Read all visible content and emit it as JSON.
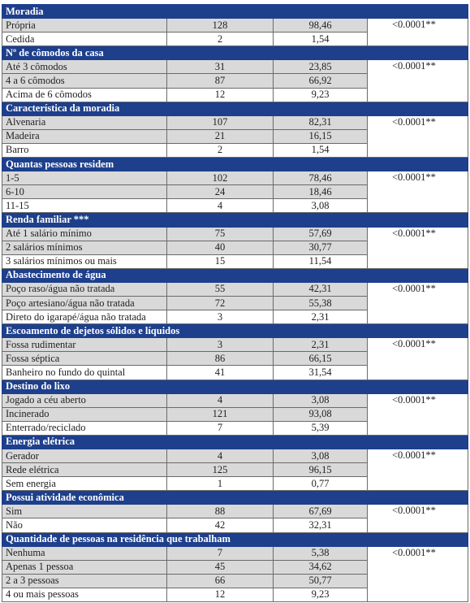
{
  "sections": [
    {
      "title": "Moradia",
      "p": "<0.0001**",
      "rows": [
        [
          "Própria",
          "128",
          "98,46"
        ],
        [
          "Cedida",
          "2",
          "1,54"
        ]
      ]
    },
    {
      "title": "Nº de cômodos da casa",
      "p": "<0.0001**",
      "rows": [
        [
          "Até 3 cômodos",
          "31",
          "23,85"
        ],
        [
          "4 a 6 cômodos",
          "87",
          "66,92"
        ],
        [
          "Acima de 6 cômodos",
          "12",
          "9,23"
        ]
      ]
    },
    {
      "title": "Característica da moradia",
      "p": "<0.0001**",
      "rows": [
        [
          "Alvenaria",
          "107",
          "82,31"
        ],
        [
          "Madeira",
          "21",
          "16,15"
        ],
        [
          "Barro",
          "2",
          "1,54"
        ]
      ]
    },
    {
      "title": "Quantas pessoas residem",
      "p": "<0.0001**",
      "rows": [
        [
          "1-5",
          "102",
          "78,46"
        ],
        [
          "6-10",
          "24",
          "18,46"
        ],
        [
          "11-15",
          "4",
          "3,08"
        ]
      ]
    },
    {
      "title": "Renda familiar ***",
      "p": "<0.0001**",
      "rows": [
        [
          "Até 1 salário mínimo",
          "75",
          "57,69"
        ],
        [
          "2 salários mínimos",
          "40",
          "30,77"
        ],
        [
          "3 salários mínimos ou mais",
          "15",
          "11,54"
        ]
      ]
    },
    {
      "title": "Abastecimento de água",
      "p": "<0.0001**",
      "rows": [
        [
          "Poço raso/água não tratada",
          "55",
          "42,31"
        ],
        [
          "Poço artesiano/água não tratada",
          "72",
          "55,38"
        ],
        [
          "Direto do igarapé/água não tratada",
          "3",
          "2,31"
        ]
      ]
    },
    {
      "title": "Escoamento de dejetos sólidos e líquidos",
      "p": "<0.0001**",
      "rows": [
        [
          "Fossa rudimentar",
          "3",
          "2,31"
        ],
        [
          "Fossa séptica",
          "86",
          "66,15"
        ],
        [
          "Banheiro no fundo do quintal",
          "41",
          "31,54"
        ]
      ]
    },
    {
      "title": "Destino do lixo",
      "p": "<0.0001**",
      "rows": [
        [
          "Jogado a céu aberto",
          "4",
          "3,08"
        ],
        [
          "Incinerado",
          "121",
          "93,08"
        ],
        [
          "Enterrado/reciclado",
          "7",
          "5,39"
        ]
      ]
    },
    {
      "title": "Energia elétrica",
      "p": "<0.0001**",
      "rows": [
        [
          "Gerador",
          "4",
          "3,08"
        ],
        [
          "Rede elétrica",
          "125",
          "96,15"
        ],
        [
          "Sem energia",
          "1",
          "0,77"
        ]
      ]
    },
    {
      "title": "Possui atividade econômica",
      "p": "<0.0001**",
      "rows": [
        [
          "Sim",
          "88",
          "67,69"
        ],
        [
          "Não",
          "42",
          "32,31"
        ]
      ]
    },
    {
      "title": "Quantidade de pessoas na residência que trabalham",
      "p": "<0.0001**",
      "rows": [
        [
          "Nenhuma",
          "7",
          "5,38"
        ],
        [
          "Apenas 1 pessoa",
          "45",
          "34,62"
        ],
        [
          "2 a 3 pessoas",
          "66",
          "50,77"
        ],
        [
          "4 ou mais pessoas",
          "12",
          "9,23"
        ]
      ]
    }
  ]
}
